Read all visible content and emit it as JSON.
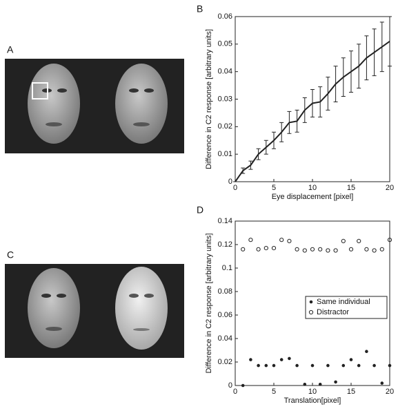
{
  "panel_labels": [
    "A",
    "B",
    "C",
    "D"
  ],
  "chart_data": [
    {
      "type": "line",
      "x_label": "Eye displacement [pixel]",
      "y_label": "Difference in C2 response [arbitrary units]",
      "x": [
        0,
        1,
        2,
        3,
        4,
        5,
        6,
        7,
        8,
        9,
        10,
        11,
        12,
        13,
        14,
        15,
        16,
        17,
        18,
        19,
        20
      ],
      "values": [
        0,
        0.004,
        0.006,
        0.01,
        0.0125,
        0.015,
        0.018,
        0.0215,
        0.022,
        0.026,
        0.0285,
        0.029,
        0.032,
        0.0355,
        0.038,
        0.04,
        0.042,
        0.045,
        0.047,
        0.049,
        0.051
      ],
      "errors": [
        0,
        0.001,
        0.0015,
        0.002,
        0.0025,
        0.003,
        0.0035,
        0.004,
        0.004,
        0.0045,
        0.005,
        0.0055,
        0.006,
        0.0065,
        0.007,
        0.0075,
        0.008,
        0.008,
        0.0085,
        0.009,
        0.009
      ],
      "color": "#222",
      "xlim": [
        0,
        20
      ],
      "xticks": [
        0,
        5,
        10,
        15,
        20
      ],
      "ylim": [
        0,
        0.06
      ],
      "yticks": [
        0,
        0.01,
        0.02,
        0.03,
        0.04,
        0.05,
        0.06
      ]
    },
    {
      "type": "scatter",
      "x_label": "Translation[pixel]",
      "y_label": "Difference in C2 response [arbitrary units]",
      "x": [
        1,
        2,
        3,
        4,
        5,
        6,
        7,
        8,
        9,
        10,
        11,
        12,
        13,
        14,
        15,
        16,
        17,
        18,
        19,
        20
      ],
      "series": [
        {
          "name": "Same individual",
          "color": "#222",
          "marker": "filled",
          "values": [
            0,
            0.022,
            0.017,
            0.017,
            0.017,
            0.022,
            0.023,
            0.017,
            0.001,
            0.017,
            0.001,
            0.017,
            0.003,
            0.017,
            0.022,
            0.017,
            0.029,
            0.017,
            0.002,
            0.017
          ]
        },
        {
          "name": "Distractor",
          "color": "#222",
          "marker": "open",
          "values": [
            0.116,
            0.124,
            0.116,
            0.117,
            0.117,
            0.124,
            0.123,
            0.116,
            0.115,
            0.116,
            0.116,
            0.115,
            0.115,
            0.123,
            0.116,
            0.123,
            0.116,
            0.115,
            0.116,
            0.124
          ]
        }
      ],
      "legend": "right",
      "xlim": [
        0,
        20
      ],
      "xticks": [
        0,
        5,
        10,
        15,
        20
      ],
      "ylim": [
        0,
        0.14
      ],
      "yticks": [
        0,
        0.02,
        0.04,
        0.06,
        0.08,
        0.1,
        0.12,
        0.14
      ]
    }
  ]
}
